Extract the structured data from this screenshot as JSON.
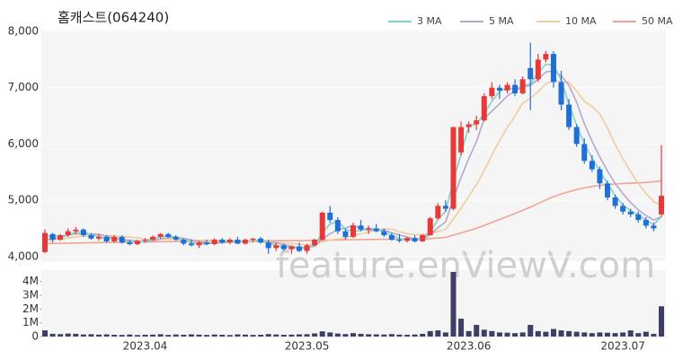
{
  "chart_data": {
    "type": "candlestick",
    "title": "홈캐스트(064240)",
    "watermark": "feature.enViewV.com",
    "up_color": "#e8393a",
    "down_color": "#1f6fd6",
    "categories": [
      null,
      null,
      null,
      null,
      null,
      null,
      null,
      null,
      null,
      null,
      null,
      null,
      null,
      "2023.04",
      null,
      null,
      null,
      null,
      null,
      null,
      null,
      null,
      null,
      null,
      null,
      null,
      null,
      null,
      null,
      null,
      null,
      null,
      null,
      null,
      "2023.05",
      null,
      null,
      null,
      null,
      null,
      null,
      null,
      null,
      null,
      null,
      null,
      null,
      null,
      null,
      null,
      null,
      null,
      null,
      null,
      null,
      "2023.06",
      null,
      null,
      null,
      null,
      null,
      null,
      null,
      null,
      null,
      null,
      null,
      null,
      null,
      null,
      null,
      null,
      null,
      null,
      null,
      "2023.07",
      null,
      null,
      null,
      null,
      null
    ],
    "open": [
      4080,
      4400,
      4300,
      4380,
      4450,
      4480,
      4380,
      4320,
      4350,
      4270,
      4350,
      4250,
      4220,
      4280,
      4300,
      4350,
      4400,
      4350,
      4300,
      4230,
      4200,
      4250,
      4220,
      4300,
      4250,
      4300,
      4230,
      4300,
      4320,
      4250,
      4150,
      4200,
      4130,
      4180,
      4100,
      4200,
      4300,
      4780,
      4650,
      4450,
      4350,
      4550,
      4480,
      4500,
      4450,
      4380,
      4300,
      4280,
      4330,
      4270,
      4380,
      4680,
      4900,
      4850,
      5850,
      6300,
      6350,
      6420,
      6850,
      7000,
      6950,
      7050,
      6900,
      7350,
      7150,
      7500,
      7600,
      7100,
      6700,
      6300,
      6000,
      5700,
      5550,
      5300,
      5050,
      4900,
      4800,
      4750,
      4650,
      4550,
      4750
    ],
    "high": [
      4480,
      4420,
      4400,
      4500,
      4530,
      4500,
      4420,
      4400,
      4380,
      4380,
      4380,
      4300,
      4300,
      4330,
      4380,
      4420,
      4420,
      4380,
      4320,
      4300,
      4280,
      4300,
      4320,
      4330,
      4330,
      4350,
      4320,
      4330,
      4350,
      4300,
      4250,
      4230,
      4200,
      4250,
      4230,
      4320,
      4800,
      4900,
      4700,
      4500,
      4600,
      4650,
      4550,
      4580,
      4500,
      4420,
      4400,
      4350,
      4380,
      4400,
      4700,
      4950,
      5000,
      6300,
      6400,
      6400,
      6500,
      6900,
      7100,
      7050,
      7100,
      7150,
      7200,
      7800,
      7600,
      7650,
      7650,
      7300,
      6800,
      6350,
      6100,
      5800,
      5600,
      5350,
      5100,
      4950,
      4850,
      4800,
      4700,
      4600,
      5980
    ],
    "low": [
      4060,
      4250,
      4280,
      4350,
      4400,
      4350,
      4300,
      4280,
      4250,
      4250,
      4230,
      4200,
      4200,
      4240,
      4280,
      4320,
      4330,
      4280,
      4200,
      4180,
      4150,
      4200,
      4200,
      4230,
      4220,
      4220,
      4210,
      4250,
      4230,
      4050,
      4100,
      4100,
      4050,
      4080,
      4050,
      4180,
      4280,
      4600,
      4400,
      4300,
      4330,
      4450,
      4400,
      4430,
      4350,
      4280,
      4250,
      4250,
      4250,
      4260,
      4370,
      4650,
      4800,
      4820,
      5800,
      6200,
      6250,
      6400,
      6800,
      6800,
      6900,
      6850,
      6880,
      6600,
      7100,
      7450,
      7000,
      6600,
      6250,
      5950,
      5650,
      5500,
      5200,
      5000,
      4850,
      4750,
      4700,
      4600,
      4500,
      4450,
      4700
    ],
    "close": [
      4420,
      4300,
      4380,
      4450,
      4480,
      4380,
      4320,
      4350,
      4270,
      4350,
      4250,
      4220,
      4280,
      4300,
      4350,
      4400,
      4350,
      4300,
      4230,
      4200,
      4250,
      4220,
      4300,
      4250,
      4300,
      4230,
      4300,
      4320,
      4250,
      4150,
      4200,
      4130,
      4180,
      4100,
      4200,
      4300,
      4780,
      4650,
      4450,
      4350,
      4550,
      4480,
      4500,
      4450,
      4380,
      4300,
      4280,
      4330,
      4270,
      4380,
      4680,
      4900,
      4850,
      6300,
      6300,
      6350,
      6420,
      6850,
      7000,
      6950,
      7050,
      6900,
      7150,
      7150,
      7500,
      7600,
      7100,
      6700,
      6300,
      6000,
      5700,
      5550,
      5300,
      5050,
      4900,
      4800,
      4750,
      4650,
      4550,
      4500,
      5080
    ],
    "ylim": [
      3950,
      8000
    ],
    "yticks": [
      {
        "value": 4000,
        "label": "4,000"
      },
      {
        "value": 5000,
        "label": "5,000"
      },
      {
        "value": 6000,
        "label": "6,000"
      },
      {
        "value": 7000,
        "label": "7,000"
      },
      {
        "value": 8000,
        "label": "8,000"
      }
    ],
    "grid": true,
    "moving_averages": [
      {
        "name": "3 MA",
        "color": "#7dd3c8",
        "values": [
          4350,
          4370,
          4367,
          4377,
          4437,
          4437,
          4393,
          4350,
          4313,
          4323,
          4290,
          4273,
          4250,
          4267,
          4310,
          4350,
          4367,
          4350,
          4293,
          4243,
          4227,
          4223,
          4257,
          4257,
          4283,
          4260,
          4277,
          4283,
          4290,
          4240,
          4200,
          4160,
          4170,
          4137,
          4160,
          4200,
          4427,
          4577,
          4627,
          4483,
          4450,
          4460,
          4510,
          4477,
          4443,
          4377,
          4320,
          4303,
          4293,
          4327,
          4443,
          4653,
          4810,
          5350,
          5817,
          6317,
          6357,
          6540,
          6757,
          6933,
          7000,
          6967,
          7033,
          7067,
          7267,
          7417,
          7400,
          7133,
          6700,
          6333,
          6000,
          5750,
          5517,
          5300,
          5083,
          4917,
          4817,
          4733,
          4650,
          4567,
          4710
        ]
      },
      {
        "name": "5 MA",
        "color": "#b3a8cc",
        "values": [
          4300,
          4320,
          4340,
          4380,
          4406,
          4398,
          4402,
          4396,
          4360,
          4334,
          4308,
          4288,
          4274,
          4260,
          4280,
          4310,
          4336,
          4340,
          4326,
          4296,
          4266,
          4240,
          4240,
          4244,
          4264,
          4260,
          4276,
          4284,
          4280,
          4250,
          4244,
          4210,
          4182,
          4152,
          4162,
          4182,
          4312,
          4406,
          4476,
          4506,
          4556,
          4496,
          4466,
          4466,
          4472,
          4422,
          4382,
          4348,
          4312,
          4312,
          4388,
          4512,
          4616,
          5022,
          5406,
          5740,
          6044,
          6444,
          6584,
          6714,
          6854,
          6950,
          7010,
          7040,
          7150,
          7280,
          7300,
          7210,
          7040,
          6740,
          6360,
          6050,
          5770,
          5520,
          5300,
          5120,
          4960,
          4830,
          4730,
          4650,
          4706
        ]
      },
      {
        "name": "10 MA",
        "color": "#f2cc9c",
        "values": [
          4280,
          4290,
          4310,
          4330,
          4350,
          4360,
          4370,
          4375,
          4375,
          4370,
          4353,
          4345,
          4335,
          4310,
          4307,
          4309,
          4312,
          4307,
          4293,
          4288,
          4288,
          4288,
          4290,
          4285,
          4280,
          4263,
          4258,
          4262,
          4262,
          4257,
          4252,
          4243,
          4233,
          4216,
          4206,
          4213,
          4261,
          4294,
          4314,
          4329,
          4369,
          4404,
          4436,
          4471,
          4489,
          4489,
          4439,
          4407,
          4389,
          4392,
          4405,
          4447,
          4482,
          4667,
          4859,
          5064,
          5278,
          5530,
          5803,
          6060,
          6297,
          6497,
          6727,
          6812,
          6932,
          7067,
          7125,
          7110,
          7095,
          6945,
          6755,
          6665,
          6535,
          6280,
          5990,
          5740,
          5505,
          5300,
          5125,
          4975,
          4905
        ]
      },
      {
        "name": "50 MA",
        "color": "#f2a493",
        "values": [
          4230,
          4232,
          4235,
          4238,
          4240,
          4243,
          4245,
          4248,
          4250,
          4252,
          4254,
          4256,
          4258,
          4260,
          4262,
          4264,
          4266,
          4268,
          4270,
          4271,
          4272,
          4273,
          4274,
          4275,
          4276,
          4277,
          4278,
          4279,
          4280,
          4280,
          4281,
          4281,
          4282,
          4282,
          4283,
          4285,
          4290,
          4293,
          4295,
          4297,
          4300,
          4302,
          4304,
          4306,
          4307,
          4308,
          4309,
          4310,
          4311,
          4312,
          4318,
          4330,
          4341,
          4381,
          4420,
          4460,
          4502,
          4553,
          4607,
          4658,
          4712,
          4764,
          4820,
          4878,
          4942,
          5006,
          5062,
          5112,
          5153,
          5190,
          5219,
          5244,
          5265,
          5280,
          5290,
          5297,
          5303,
          5309,
          5317,
          5330,
          5346
        ]
      }
    ],
    "volume": {
      "color": "#3d3f66",
      "values": [
        450000,
        200000,
        180000,
        220000,
        200000,
        150000,
        170000,
        140000,
        160000,
        130000,
        120000,
        150000,
        110000,
        130000,
        140000,
        170000,
        120000,
        150000,
        130000,
        160000,
        140000,
        120000,
        150000,
        130000,
        110000,
        160000,
        140000,
        120000,
        130000,
        180000,
        150000,
        130000,
        140000,
        160000,
        170000,
        230000,
        380000,
        300000,
        220000,
        180000,
        250000,
        200000,
        170000,
        160000,
        150000,
        180000,
        140000,
        130000,
        150000,
        200000,
        400000,
        450000,
        300000,
        4700000,
        1300000,
        400000,
        850000,
        500000,
        400000,
        300000,
        280000,
        250000,
        300000,
        850000,
        400000,
        350000,
        550000,
        450000,
        400000,
        350000,
        300000,
        250000,
        300000,
        280000,
        250000,
        300000,
        450000,
        250000,
        350000,
        200000,
        2200000
      ],
      "ylim": [
        0,
        4700000
      ],
      "yticks": [
        0,
        {
          "value": 1000000,
          "label": "1M"
        },
        {
          "value": 2000000,
          "label": "2M"
        },
        {
          "value": 3000000,
          "label": "3M"
        },
        {
          "value": 4000000,
          "label": "4M"
        }
      ]
    }
  }
}
